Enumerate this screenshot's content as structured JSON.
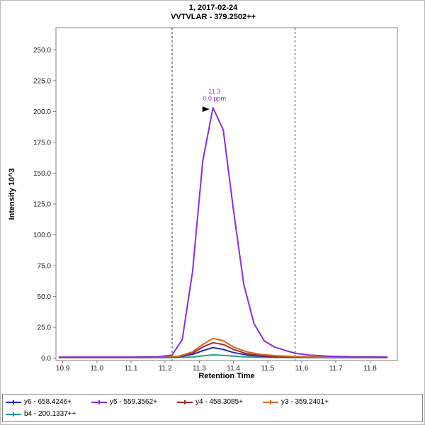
{
  "chart_data": {
    "type": "line",
    "title": "1, 2017-02-24",
    "subtitle": "VVTVLAR - 379.2502++",
    "xlabel": "Retention Time",
    "ylabel": "Intensity 10^3",
    "xlim": [
      10.88,
      11.88
    ],
    "ylim": [
      -2,
      268
    ],
    "x_ticks": [
      10.9,
      11.0,
      11.1,
      11.2,
      11.3,
      11.4,
      11.5,
      11.6,
      11.7,
      11.8
    ],
    "y_ticks": [
      0,
      25,
      50,
      75,
      100,
      125,
      150,
      175,
      200,
      225,
      250
    ],
    "integration_boundaries": [
      11.22,
      11.58
    ],
    "peak_annotation": {
      "rt_label": "11.3",
      "ppm_label": "0.0 ppm",
      "x": 11.34,
      "y": 203,
      "color": "#8a2be2",
      "marker_color": "#000000"
    },
    "axis_color": "#808080",
    "tick_label_color": "#202020",
    "boundary_color": "#333333",
    "series": [
      {
        "id": "y6",
        "label": "y6 - 658.4246+",
        "color": "#2222cc",
        "points": [
          [
            10.89,
            0.6
          ],
          [
            11.0,
            0.6
          ],
          [
            11.1,
            0.6
          ],
          [
            11.18,
            0.6
          ],
          [
            11.24,
            1.0
          ],
          [
            11.28,
            3.0
          ],
          [
            11.31,
            6.0
          ],
          [
            11.34,
            8.5
          ],
          [
            11.37,
            7.0
          ],
          [
            11.4,
            4.5
          ],
          [
            11.44,
            2.5
          ],
          [
            11.48,
            1.5
          ],
          [
            11.52,
            1.0
          ],
          [
            11.58,
            0.7
          ],
          [
            11.7,
            0.6
          ],
          [
            11.85,
            0.5
          ]
        ]
      },
      {
        "id": "y5",
        "label": "y5 - 559.3562+",
        "color": "#8a2be2",
        "points": [
          [
            10.89,
            0.8
          ],
          [
            11.0,
            0.8
          ],
          [
            11.1,
            0.8
          ],
          [
            11.18,
            1.0
          ],
          [
            11.22,
            2.5
          ],
          [
            11.25,
            15
          ],
          [
            11.28,
            70
          ],
          [
            11.31,
            160
          ],
          [
            11.34,
            203
          ],
          [
            11.37,
            185
          ],
          [
            11.4,
            120
          ],
          [
            11.43,
            60
          ],
          [
            11.46,
            28
          ],
          [
            11.49,
            14
          ],
          [
            11.52,
            9
          ],
          [
            11.56,
            5.5
          ],
          [
            11.58,
            4
          ],
          [
            11.62,
            2.5
          ],
          [
            11.68,
            1.5
          ],
          [
            11.75,
            1.0
          ],
          [
            11.85,
            0.8
          ]
        ]
      },
      {
        "id": "y4",
        "label": "y4 - 458.3085+",
        "color": "#a52a2a",
        "points": [
          [
            10.89,
            0.4
          ],
          [
            11.0,
            0.4
          ],
          [
            11.1,
            0.4
          ],
          [
            11.18,
            0.5
          ],
          [
            11.24,
            1.2
          ],
          [
            11.28,
            4.0
          ],
          [
            11.31,
            9.0
          ],
          [
            11.34,
            12.5
          ],
          [
            11.37,
            11.0
          ],
          [
            11.4,
            7.0
          ],
          [
            11.44,
            3.5
          ],
          [
            11.48,
            2.0
          ],
          [
            11.52,
            1.3
          ],
          [
            11.58,
            0.9
          ],
          [
            11.7,
            0.5
          ],
          [
            11.85,
            0.4
          ]
        ]
      },
      {
        "id": "y3",
        "label": "y3 - 359.2401+",
        "color": "#d2691e",
        "points": [
          [
            10.89,
            0.5
          ],
          [
            11.0,
            0.5
          ],
          [
            11.1,
            0.5
          ],
          [
            11.18,
            0.6
          ],
          [
            11.24,
            1.5
          ],
          [
            11.28,
            5.0
          ],
          [
            11.31,
            11.0
          ],
          [
            11.34,
            16.0
          ],
          [
            11.37,
            14.0
          ],
          [
            11.4,
            9.0
          ],
          [
            11.44,
            5.0
          ],
          [
            11.48,
            3.0
          ],
          [
            11.52,
            2.0
          ],
          [
            11.58,
            1.2
          ],
          [
            11.65,
            0.8
          ],
          [
            11.85,
            0.5
          ]
        ]
      },
      {
        "id": "b4",
        "label": "b4 - 200.1337++",
        "color": "#1f9e8e",
        "points": [
          [
            10.89,
            0.3
          ],
          [
            11.0,
            0.3
          ],
          [
            11.1,
            0.3
          ],
          [
            11.2,
            0.3
          ],
          [
            11.28,
            0.8
          ],
          [
            11.31,
            1.8
          ],
          [
            11.34,
            2.6
          ],
          [
            11.38,
            2.0
          ],
          [
            11.43,
            1.0
          ],
          [
            11.5,
            0.5
          ],
          [
            11.58,
            0.4
          ],
          [
            11.7,
            0.3
          ],
          [
            11.85,
            0.3
          ]
        ]
      }
    ],
    "draw_order": [
      4,
      0,
      2,
      3,
      1
    ]
  }
}
